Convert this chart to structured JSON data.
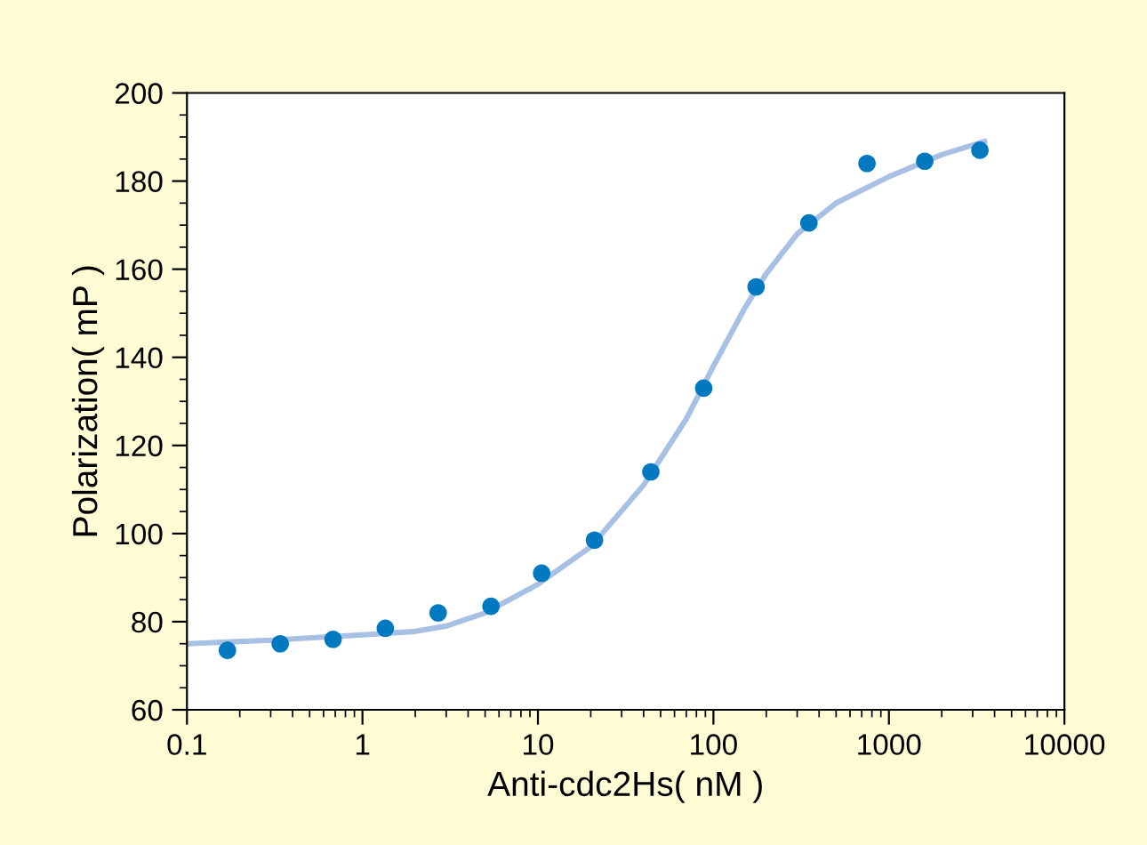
{
  "chart_data": {
    "type": "scatter",
    "xlabel": "Anti-cdc2Hs( nM )",
    "ylabel": "Polarization( mP )",
    "log": "x",
    "xlim": [
      0.1,
      10000
    ],
    "xticks": [
      0.1,
      1,
      10,
      100,
      1000,
      10000
    ],
    "ylim": [
      60,
      200
    ],
    "yticks": [
      60,
      80,
      100,
      120,
      140,
      160,
      180,
      200
    ],
    "grid": false,
    "series": [
      {
        "type": "line",
        "marker": "none",
        "color": "#a8c0e4",
        "x": [
          0.1,
          0.3,
          1,
          2,
          3,
          5,
          10,
          20,
          40,
          70,
          100,
          150,
          200,
          300,
          500,
          1000,
          2000,
          3500
        ],
        "values": [
          75,
          75.8,
          77,
          77.8,
          79,
          82,
          88.5,
          97,
          111,
          126,
          138,
          151,
          159,
          168,
          175,
          181,
          186,
          189
        ]
      },
      {
        "marker": "circle",
        "color": "#0079c1",
        "x": [
          0.17,
          0.34,
          0.68,
          1.35,
          2.7,
          5.4,
          10.5,
          21,
          44,
          88,
          175,
          350,
          750,
          1600,
          3300
        ],
        "values": [
          73.5,
          75,
          76,
          78.5,
          82,
          83.5,
          91,
          98.5,
          114,
          133,
          156,
          170.5,
          184,
          184.5,
          187
        ]
      }
    ]
  }
}
